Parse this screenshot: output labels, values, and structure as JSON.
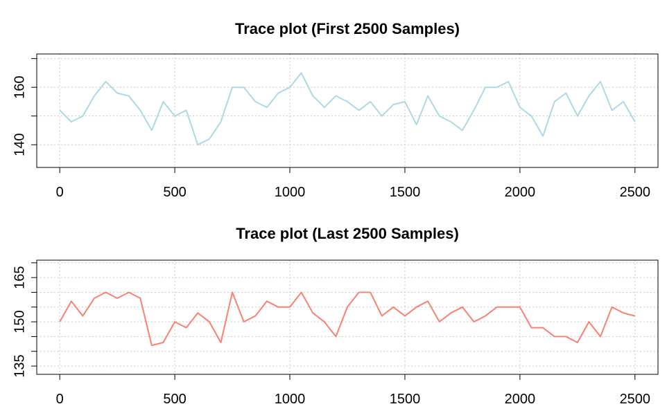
{
  "chart_data": [
    {
      "type": "line",
      "title": "Trace plot (First 2500 Samples)",
      "color": "#add8e6",
      "x": [
        0,
        50,
        100,
        150,
        200,
        250,
        300,
        350,
        400,
        450,
        500,
        550,
        600,
        650,
        700,
        750,
        800,
        850,
        900,
        950,
        1000,
        1050,
        1100,
        1150,
        1200,
        1250,
        1300,
        1350,
        1400,
        1450,
        1500,
        1550,
        1600,
        1650,
        1700,
        1750,
        1800,
        1850,
        1900,
        1950,
        2000,
        2050,
        2100,
        2150,
        2200,
        2250,
        2300,
        2350,
        2400,
        2450,
        2500
      ],
      "values": [
        152,
        148,
        150,
        157,
        162,
        158,
        157,
        152,
        145,
        155,
        150,
        152,
        140,
        142,
        148,
        160,
        160,
        155,
        153,
        158,
        160,
        165,
        157,
        153,
        157,
        155,
        152,
        155,
        150,
        154,
        155,
        147,
        157,
        150,
        148,
        145,
        152,
        160,
        160,
        162,
        153,
        150,
        143,
        155,
        158,
        150,
        157,
        162,
        152,
        155,
        148
      ],
      "xlim": [
        -100,
        2600
      ],
      "xticks": [
        0,
        500,
        1000,
        1500,
        2000,
        2500
      ],
      "ylim": [
        132.1,
        171.6
      ],
      "yticks": [
        140,
        160
      ],
      "minor_yticks": [
        150,
        170
      ],
      "grid": true
    },
    {
      "type": "line",
      "title": "Trace plot (Last 2500 Samples)",
      "color": "#fa8072",
      "x": [
        0,
        50,
        100,
        150,
        200,
        250,
        300,
        350,
        400,
        450,
        500,
        550,
        600,
        650,
        700,
        750,
        800,
        850,
        900,
        950,
        1000,
        1050,
        1100,
        1150,
        1200,
        1250,
        1300,
        1350,
        1400,
        1450,
        1500,
        1550,
        1600,
        1650,
        1700,
        1750,
        1800,
        1850,
        1900,
        1950,
        2000,
        2050,
        2100,
        2150,
        2200,
        2250,
        2300,
        2350,
        2400,
        2450,
        2500
      ],
      "values": [
        150,
        157,
        152,
        158,
        160,
        158,
        160,
        158,
        142,
        143,
        150,
        148,
        153,
        150,
        143,
        160,
        150,
        152,
        157,
        155,
        155,
        160,
        153,
        150,
        145,
        155,
        160,
        160,
        152,
        155,
        152,
        155,
        157,
        150,
        153,
        155,
        150,
        152,
        155,
        155,
        155,
        148,
        148,
        145,
        145,
        143,
        150,
        145,
        155,
        153,
        152
      ],
      "xlim": [
        -100,
        2600
      ],
      "xticks": [
        0,
        500,
        1000,
        1500,
        2000,
        2500
      ],
      "ylim": [
        132.2,
        170.9
      ],
      "yticks": [
        135,
        150,
        165
      ],
      "minor_yticks": [
        140,
        145,
        155,
        160,
        170
      ],
      "grid": true
    }
  ]
}
